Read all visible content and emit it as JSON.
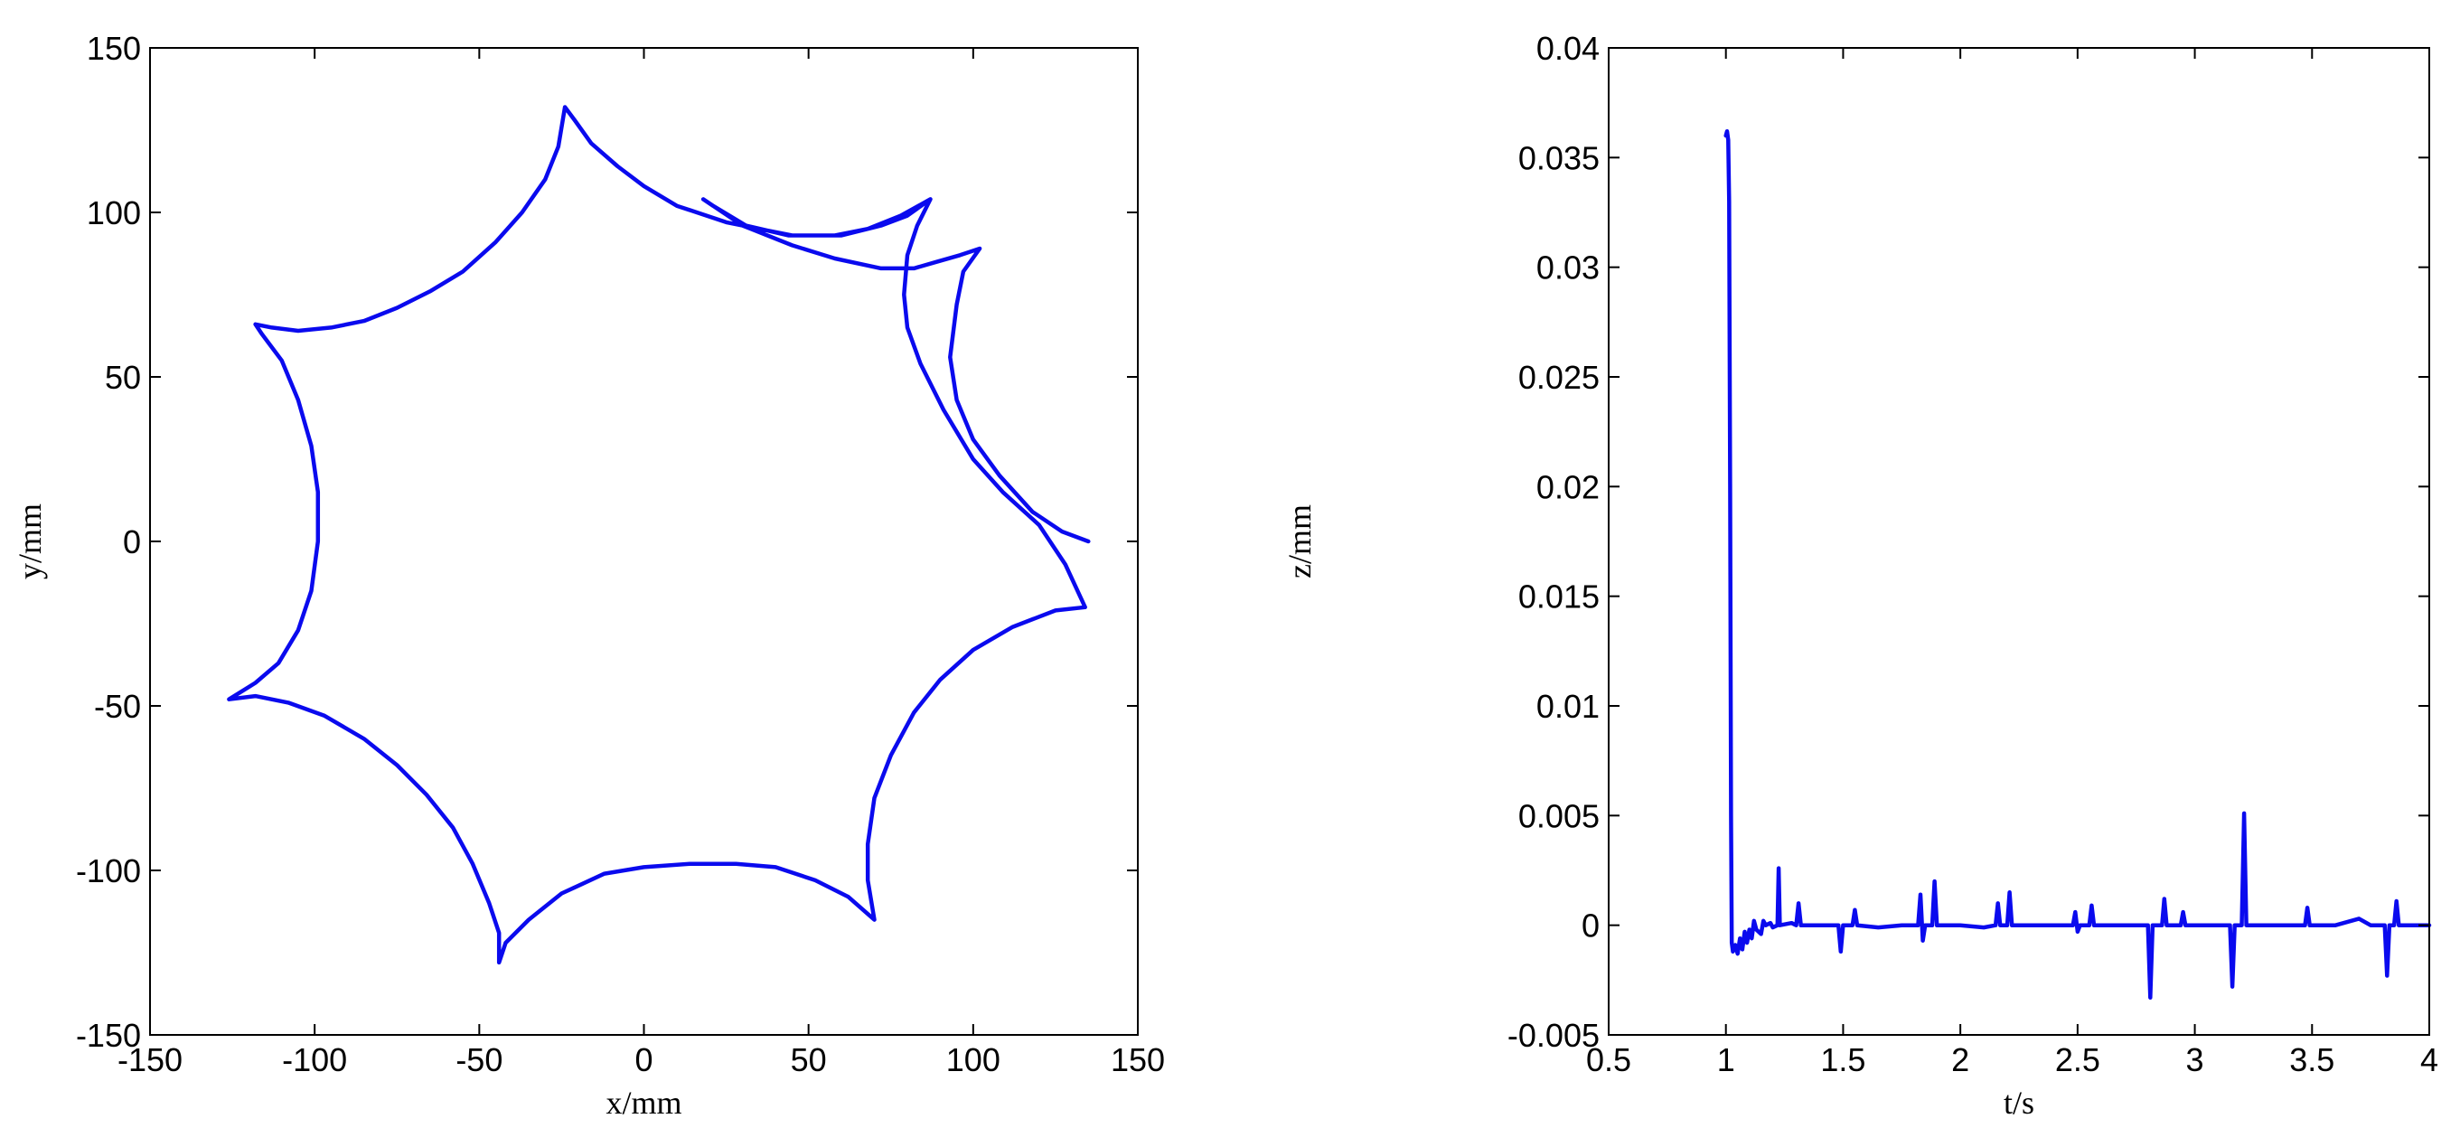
{
  "chart_data": [
    {
      "type": "line",
      "xlabel": "x/mm",
      "ylabel": "y/mm",
      "xlim": [
        -150,
        150
      ],
      "ylim": [
        -150,
        150
      ],
      "xticks": [
        -150,
        -100,
        -50,
        0,
        50,
        100,
        150
      ],
      "yticks": [
        -150,
        -100,
        -50,
        0,
        50,
        100,
        150
      ],
      "xtick_labels": [
        "-150",
        "-100",
        "-50",
        "0",
        "50",
        "100",
        "150"
      ],
      "ytick_labels": [
        "-150",
        "-100",
        "-50",
        "0",
        "50",
        "100",
        "150"
      ],
      "grid": false,
      "line_color": "#0a0aee",
      "series": [
        {
          "values_xy": [
            [
              135,
              0
            ],
            [
              127,
              3
            ],
            [
              118,
              9
            ],
            [
              108,
              20
            ],
            [
              100,
              31
            ],
            [
              95,
              43
            ],
            [
              93,
              56
            ],
            [
              95,
              72
            ],
            [
              97,
              82
            ],
            [
              102,
              89
            ],
            [
              96,
              87
            ],
            [
              89,
              85
            ],
            [
              82,
              83
            ],
            [
              72,
              83
            ],
            [
              58,
              86
            ],
            [
              45,
              90
            ],
            [
              30,
              96
            ],
            [
              18,
              104
            ],
            [
              21,
              102
            ],
            [
              31,
              96
            ],
            [
              44,
              93
            ],
            [
              58,
              93
            ],
            [
              68,
              95
            ],
            [
              78,
              99
            ],
            [
              87,
              104
            ],
            [
              83,
              96
            ],
            [
              80,
              87
            ],
            [
              79,
              75
            ],
            [
              80,
              65
            ],
            [
              84,
              54
            ],
            [
              91,
              40
            ],
            [
              100,
              25
            ],
            [
              109,
              15
            ],
            [
              120,
              5
            ],
            [
              128,
              -7
            ],
            [
              134,
              -20
            ],
            [
              125,
              -21
            ],
            [
              112,
              -26
            ],
            [
              100,
              -33
            ],
            [
              90,
              -42
            ],
            [
              82,
              -52
            ],
            [
              75,
              -65
            ],
            [
              70,
              -78
            ],
            [
              68,
              -92
            ],
            [
              68,
              -103
            ],
            [
              70,
              -115
            ],
            [
              62,
              -108
            ],
            [
              52,
              -103
            ],
            [
              40,
              -99
            ],
            [
              28,
              -98
            ],
            [
              14,
              -98
            ],
            [
              0,
              -99
            ],
            [
              -12,
              -101
            ],
            [
              -25,
              -107
            ],
            [
              -35,
              -115
            ],
            [
              -42,
              -122
            ],
            [
              -44,
              -128
            ],
            [
              -44,
              -119
            ],
            [
              -47,
              -110
            ],
            [
              -52,
              -98
            ],
            [
              -58,
              -87
            ],
            [
              -66,
              -77
            ],
            [
              -75,
              -68
            ],
            [
              -85,
              -60
            ],
            [
              -97,
              -53
            ],
            [
              -108,
              -49
            ],
            [
              -118,
              -47
            ],
            [
              -126,
              -48
            ],
            [
              -118,
              -43
            ],
            [
              -111,
              -37
            ],
            [
              -105,
              -27
            ],
            [
              -101,
              -15
            ],
            [
              -99,
              0
            ],
            [
              -99,
              15
            ],
            [
              -101,
              29
            ],
            [
              -105,
              43
            ],
            [
              -110,
              55
            ],
            [
              -116,
              63
            ],
            [
              -118,
              66
            ],
            [
              -113,
              65
            ],
            [
              -105,
              64
            ],
            [
              -95,
              65
            ],
            [
              -85,
              67
            ],
            [
              -75,
              71
            ],
            [
              -65,
              76
            ],
            [
              -55,
              82
            ],
            [
              -45,
              91
            ],
            [
              -37,
              100
            ],
            [
              -30,
              110
            ],
            [
              -26,
              120
            ],
            [
              -24,
              132
            ],
            [
              -21,
              128
            ],
            [
              -16,
              121
            ],
            [
              -8,
              114
            ],
            [
              0,
              108
            ],
            [
              10,
              102
            ],
            [
              25,
              97
            ],
            [
              45,
              93
            ],
            [
              60,
              93
            ],
            [
              72,
              96
            ],
            [
              80,
              99
            ],
            [
              87,
              104
            ]
          ]
        }
      ]
    },
    {
      "type": "line",
      "xlabel": "t/s",
      "ylabel": "z/mm",
      "xlim": [
        0.5,
        4
      ],
      "ylim": [
        -0.005,
        0.04
      ],
      "xticks": [
        0.5,
        1,
        1.5,
        2,
        2.5,
        3,
        3.5,
        4
      ],
      "yticks": [
        -0.005,
        0,
        0.005,
        0.01,
        0.015,
        0.02,
        0.025,
        0.03,
        0.035,
        0.04
      ],
      "xtick_labels": [
        "0.5",
        "1",
        "1.5",
        "2",
        "2.5",
        "3",
        "3.5",
        "4"
      ],
      "ytick_labels": [
        "-0.005",
        "0",
        "0.005",
        "0.01",
        "0.015",
        "0.02",
        "0.025",
        "0.03",
        "0.035",
        "0.04"
      ],
      "grid": false,
      "line_color": "#0a0aee",
      "series": [
        {
          "values_xy": [
            [
              1.0,
              0.036
            ],
            [
              1.005,
              0.0362
            ],
            [
              1.01,
              0.0358
            ],
            [
              1.014,
              0.033
            ],
            [
              1.018,
              0.02
            ],
            [
              1.022,
              0.005
            ],
            [
              1.025,
              -0.0008
            ],
            [
              1.03,
              -0.0012
            ],
            [
              1.04,
              -0.0009
            ],
            [
              1.05,
              -0.0013
            ],
            [
              1.06,
              -0.0006
            ],
            [
              1.07,
              -0.0011
            ],
            [
              1.08,
              -0.0003
            ],
            [
              1.09,
              -0.0008
            ],
            [
              1.1,
              -0.0002
            ],
            [
              1.11,
              -0.0006
            ],
            [
              1.12,
              0.0002
            ],
            [
              1.13,
              -0.0002
            ],
            [
              1.15,
              -0.0004
            ],
            [
              1.16,
              0.0002
            ],
            [
              1.17,
              0.0
            ],
            [
              1.19,
              0.0001
            ],
            [
              1.2,
              -0.0001
            ],
            [
              1.22,
              0.0
            ],
            [
              1.225,
              0.0026
            ],
            [
              1.23,
              0.0
            ],
            [
              1.28,
              0.0001
            ],
            [
              1.3,
              0.0
            ],
            [
              1.31,
              0.001
            ],
            [
              1.32,
              0.0
            ],
            [
              1.4,
              0.0
            ],
            [
              1.48,
              0.0
            ],
            [
              1.49,
              -0.0012
            ],
            [
              1.5,
              0.0
            ],
            [
              1.54,
              0.0
            ],
            [
              1.55,
              0.0007
            ],
            [
              1.56,
              0.0
            ],
            [
              1.65,
              -0.0001
            ],
            [
              1.75,
              0.0
            ],
            [
              1.82,
              0.0
            ],
            [
              1.83,
              0.0014
            ],
            [
              1.84,
              -0.0007
            ],
            [
              1.85,
              0.0
            ],
            [
              1.88,
              0.0
            ],
            [
              1.89,
              0.002
            ],
            [
              1.9,
              0.0
            ],
            [
              2.0,
              0.0
            ],
            [
              2.1,
              -0.0001
            ],
            [
              2.15,
              0.0
            ],
            [
              2.16,
              0.001
            ],
            [
              2.17,
              0.0
            ],
            [
              2.2,
              0.0
            ],
            [
              2.21,
              0.0015
            ],
            [
              2.22,
              0.0
            ],
            [
              2.35,
              0.0
            ],
            [
              2.48,
              0.0
            ],
            [
              2.49,
              0.0006
            ],
            [
              2.5,
              -0.0003
            ],
            [
              2.51,
              0.0
            ],
            [
              2.55,
              0.0
            ],
            [
              2.56,
              0.0009
            ],
            [
              2.57,
              0.0
            ],
            [
              2.7,
              0.0
            ],
            [
              2.8,
              0.0
            ],
            [
              2.81,
              -0.0033
            ],
            [
              2.82,
              0.0
            ],
            [
              2.86,
              0.0
            ],
            [
              2.87,
              0.0012
            ],
            [
              2.88,
              0.0
            ],
            [
              2.94,
              0.0
            ],
            [
              2.95,
              0.0006
            ],
            [
              2.96,
              0.0
            ],
            [
              3.1,
              0.0
            ],
            [
              3.15,
              0.0
            ],
            [
              3.16,
              -0.0028
            ],
            [
              3.17,
              0.0
            ],
            [
              3.2,
              0.0
            ],
            [
              3.21,
              0.0051
            ],
            [
              3.22,
              0.0
            ],
            [
              3.3,
              0.0
            ],
            [
              3.47,
              0.0
            ],
            [
              3.48,
              0.0008
            ],
            [
              3.49,
              0.0
            ],
            [
              3.6,
              0.0
            ],
            [
              3.7,
              0.0003
            ],
            [
              3.75,
              0.0
            ],
            [
              3.81,
              0.0
            ],
            [
              3.82,
              -0.0023
            ],
            [
              3.83,
              0.0
            ],
            [
              3.85,
              0.0
            ],
            [
              3.86,
              0.0011
            ],
            [
              3.87,
              0.0
            ],
            [
              3.95,
              0.0
            ],
            [
              4.0,
              0.0
            ]
          ]
        }
      ]
    }
  ]
}
